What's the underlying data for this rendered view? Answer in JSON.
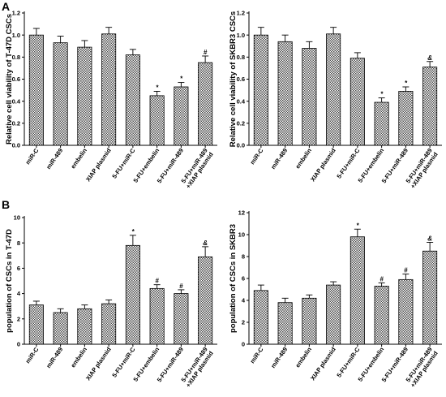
{
  "panel_labels": [
    "A",
    "B"
  ],
  "chart_data": [
    {
      "type": "bar",
      "panel": "A",
      "ylabel": "Relative cell viability of T-47D CSCs",
      "ylim": [
        0,
        1.2
      ],
      "yticks": [
        "0.0",
        "0.2",
        "0.4",
        "0.6",
        "0.8",
        "1.0",
        "1.2"
      ],
      "categories": [
        "miR-C",
        "miR-489",
        "embelin",
        "XIAP plasmid",
        "5-FU+miR-C",
        "5-FU+embelin",
        "5-FU+miR-489",
        "5-FU+miR-489\n+XIAP plasmid"
      ],
      "values": [
        1.0,
        0.93,
        0.89,
        1.01,
        0.82,
        0.45,
        0.53,
        0.75
      ],
      "errors": [
        0.06,
        0.06,
        0.06,
        0.06,
        0.05,
        0.04,
        0.04,
        0.06
      ],
      "annotations": [
        "",
        "",
        "",
        "",
        "",
        "*",
        "*",
        "#"
      ]
    },
    {
      "type": "bar",
      "panel": "A",
      "ylabel": "Relative cell viability of SKBR3 CSCs",
      "ylim": [
        0,
        1.2
      ],
      "yticks": [
        "0.0",
        "0.2",
        "0.4",
        "0.6",
        "0.8",
        "1.0",
        "1.2"
      ],
      "categories": [
        "miR-C",
        "miR-489",
        "embelin",
        "XIAP plasmid",
        "5-FU+miR-C",
        "5-FU+embelin",
        "5-FU+miR-489",
        "5-FU+miR-489\n+XIAP plasmid"
      ],
      "values": [
        1.0,
        0.94,
        0.88,
        1.01,
        0.79,
        0.39,
        0.49,
        0.71
      ],
      "errors": [
        0.07,
        0.06,
        0.06,
        0.06,
        0.05,
        0.04,
        0.04,
        0.05
      ],
      "annotations": [
        "",
        "",
        "",
        "",
        "",
        "*",
        "*",
        "&"
      ]
    },
    {
      "type": "bar",
      "panel": "B",
      "ylabel": "population of CSCs in T-47D",
      "ylim": [
        0,
        10
      ],
      "yticks": [
        "0",
        "2",
        "4",
        "6",
        "8",
        "10"
      ],
      "categories": [
        "miR-C",
        "miR-489",
        "embelin",
        "XIAP plasmid",
        "5-FU+miR-C",
        "5-FU+embelin",
        "5-FU+miR-489",
        "5-FU+miR-489\n+XIAP plasmid"
      ],
      "values": [
        3.1,
        2.5,
        2.8,
        3.2,
        7.8,
        4.4,
        4.0,
        6.9
      ],
      "errors": [
        0.3,
        0.3,
        0.3,
        0.3,
        0.8,
        0.3,
        0.3,
        0.8
      ],
      "annotations": [
        "",
        "",
        "",
        "",
        "*",
        "#",
        "#",
        "&"
      ]
    },
    {
      "type": "bar",
      "panel": "B",
      "ylabel": "population of CSCs in SKBR3",
      "ylim": [
        0,
        12
      ],
      "yticks": [
        "0",
        "2",
        "4",
        "6",
        "8",
        "10",
        "12"
      ],
      "categories": [
        "miR-C",
        "miR-489",
        "embelin",
        "XIAP plasmid",
        "5-FU+miR-C",
        "5-FU+embelin",
        "5-FU+miR-489",
        "5-FU+miR-489\n+XIAP plasmid"
      ],
      "values": [
        4.9,
        3.8,
        4.2,
        5.4,
        9.8,
        5.3,
        5.9,
        8.5
      ],
      "errors": [
        0.5,
        0.4,
        0.3,
        0.3,
        0.7,
        0.3,
        0.5,
        0.8
      ],
      "annotations": [
        "",
        "",
        "",
        "",
        "*",
        "#",
        "#",
        "&"
      ]
    }
  ]
}
